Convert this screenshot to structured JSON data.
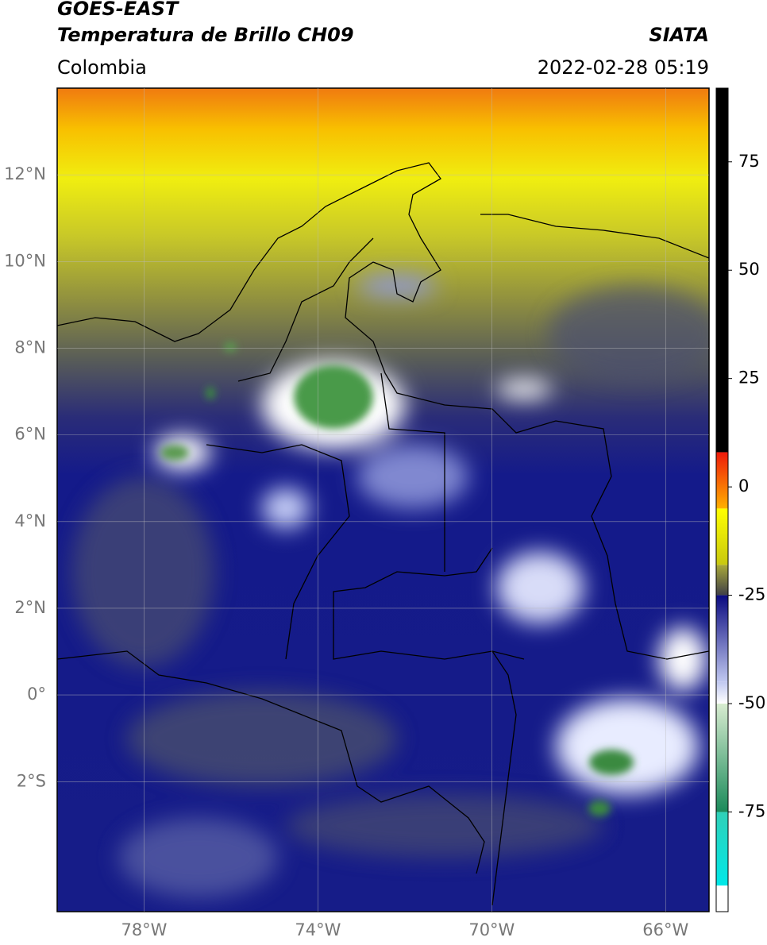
{
  "header": {
    "title": "GOES-EAST",
    "subtitle": "Temperatura de Brillo CH09",
    "source": "SIATA",
    "region": "Colombia",
    "datetime": "2022-02-28 05:19"
  },
  "map": {
    "xlim": [
      -80,
      -65
    ],
    "ylim": [
      -5,
      14
    ],
    "xticks": [
      {
        "value": -78,
        "label": "78°W"
      },
      {
        "value": -74,
        "label": "74°W"
      },
      {
        "value": -70,
        "label": "70°W"
      },
      {
        "value": -66,
        "label": "66°W"
      }
    ],
    "yticks": [
      {
        "value": 12,
        "label": "12°N"
      },
      {
        "value": 10,
        "label": "10°N"
      },
      {
        "value": 8,
        "label": "8°N"
      },
      {
        "value": 6,
        "label": "6°N"
      },
      {
        "value": 4,
        "label": "4°N"
      },
      {
        "value": 2,
        "label": "2°N"
      },
      {
        "value": 0,
        "label": "0°"
      },
      {
        "value": -2,
        "label": "2°S"
      }
    ],
    "grid": true
  },
  "colorbar": {
    "lim": [
      -98,
      92
    ],
    "ticks": [
      75,
      50,
      25,
      0,
      -25,
      -50,
      -75
    ],
    "segments": [
      {
        "from": 8,
        "to": 92,
        "colors": [
          "#000000",
          "#000000"
        ]
      },
      {
        "from": -5,
        "to": 8,
        "colors": [
          "#ffb000",
          "#ee1a0a"
        ]
      },
      {
        "from": -18,
        "to": -5,
        "colors": [
          "#c8c810",
          "#ffff00"
        ]
      },
      {
        "from": -25,
        "to": -18,
        "colors": [
          "#404048",
          "#a8a838"
        ]
      },
      {
        "from": -45,
        "to": -25,
        "colors": [
          "#c0c8f0",
          "#0a0a80"
        ]
      },
      {
        "from": -50,
        "to": -45,
        "colors": [
          "#ffffff",
          "#c0c8f0"
        ]
      },
      {
        "from": -75,
        "to": -50,
        "colors": [
          "#1a8a5a",
          "#d8ecd0"
        ]
      },
      {
        "from": -92,
        "to": -75,
        "colors": [
          "#00e8e8",
          "#30d0b8"
        ]
      },
      {
        "from": -98,
        "to": -92,
        "colors": [
          "#ffffff",
          "#ffffff"
        ]
      }
    ]
  }
}
